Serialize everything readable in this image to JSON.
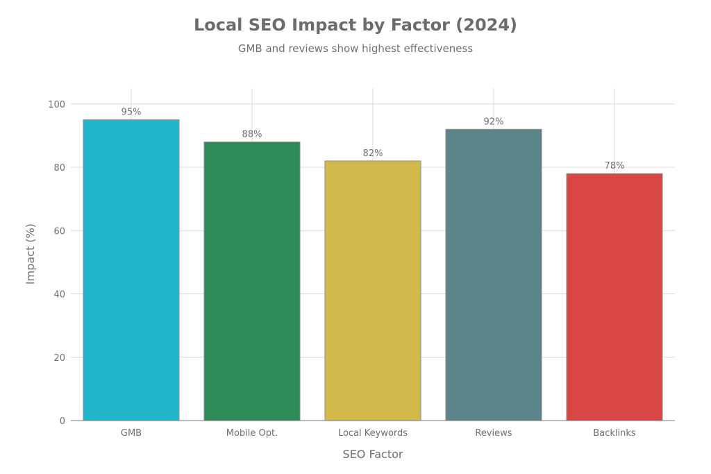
{
  "chart_data": {
    "type": "bar",
    "title": "Local SEO Impact by Factor (2024)",
    "subtitle": "GMB and reviews show highest effectiveness",
    "xlabel": "SEO Factor",
    "ylabel": "Impact (%)",
    "categories": [
      "GMB",
      "Mobile Opt.",
      "Local Keywords",
      "Reviews",
      "Backlinks"
    ],
    "values": [
      95,
      88,
      82,
      92,
      78
    ],
    "data_labels": [
      "95%",
      "88%",
      "82%",
      "92%",
      "78%"
    ],
    "colors": [
      "#20b7cc",
      "#2e8a57",
      "#d3b94b",
      "#5c858b",
      "#d94646"
    ],
    "ylim": [
      0,
      105
    ],
    "yticks": [
      0,
      20,
      40,
      60,
      80,
      100
    ],
    "ytick_labels": [
      "0",
      "20",
      "40",
      "60",
      "80",
      "100"
    ],
    "grid": true,
    "legend": "none"
  }
}
